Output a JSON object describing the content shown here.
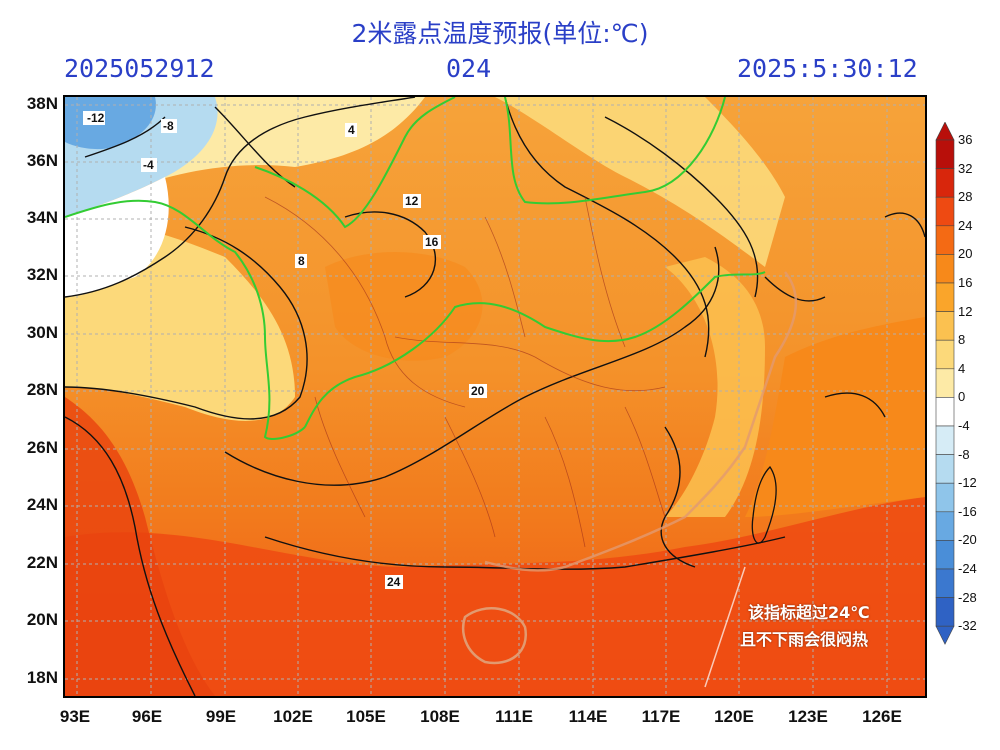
{
  "header": {
    "title": "2米露点温度预报(单位:℃)",
    "init_time": "2025052912",
    "lead_hours": "024",
    "valid_time": "2025:5:30:12"
  },
  "axes": {
    "lat_labels": [
      "38N",
      "36N",
      "34N",
      "32N",
      "30N",
      "28N",
      "26N",
      "24N",
      "22N",
      "20N",
      "18N"
    ],
    "lon_labels": [
      "93E",
      "96E",
      "99E",
      "102E",
      "105E",
      "108E",
      "111E",
      "114E",
      "117E",
      "120E",
      "123E",
      "126E"
    ]
  },
  "colorbar": {
    "labels": [
      "36",
      "32",
      "28",
      "24",
      "20",
      "16",
      "12",
      "8",
      "4",
      "0",
      "-4",
      "-8",
      "-12",
      "-16",
      "-20",
      "-24",
      "-28",
      "-32"
    ],
    "colors": [
      "#b80f0a",
      "#d8260c",
      "#ee4a12",
      "#f46a14",
      "#f7891a",
      "#faa52a",
      "#fbc150",
      "#fcd97a",
      "#fdeaa6",
      "#ffffff",
      "#d6ecf6",
      "#b5dbf0",
      "#8fc5ea",
      "#68a9e2",
      "#4a8ed8",
      "#3b78cf",
      "#2f62c4"
    ]
  },
  "contour_labels": [
    "-12",
    "-8",
    "-4",
    "4",
    "8",
    "12",
    "16",
    "20",
    "24"
  ],
  "annotation": {
    "line1": "该指标超过24℃",
    "line2": "且不下雨会很闷热"
  }
}
